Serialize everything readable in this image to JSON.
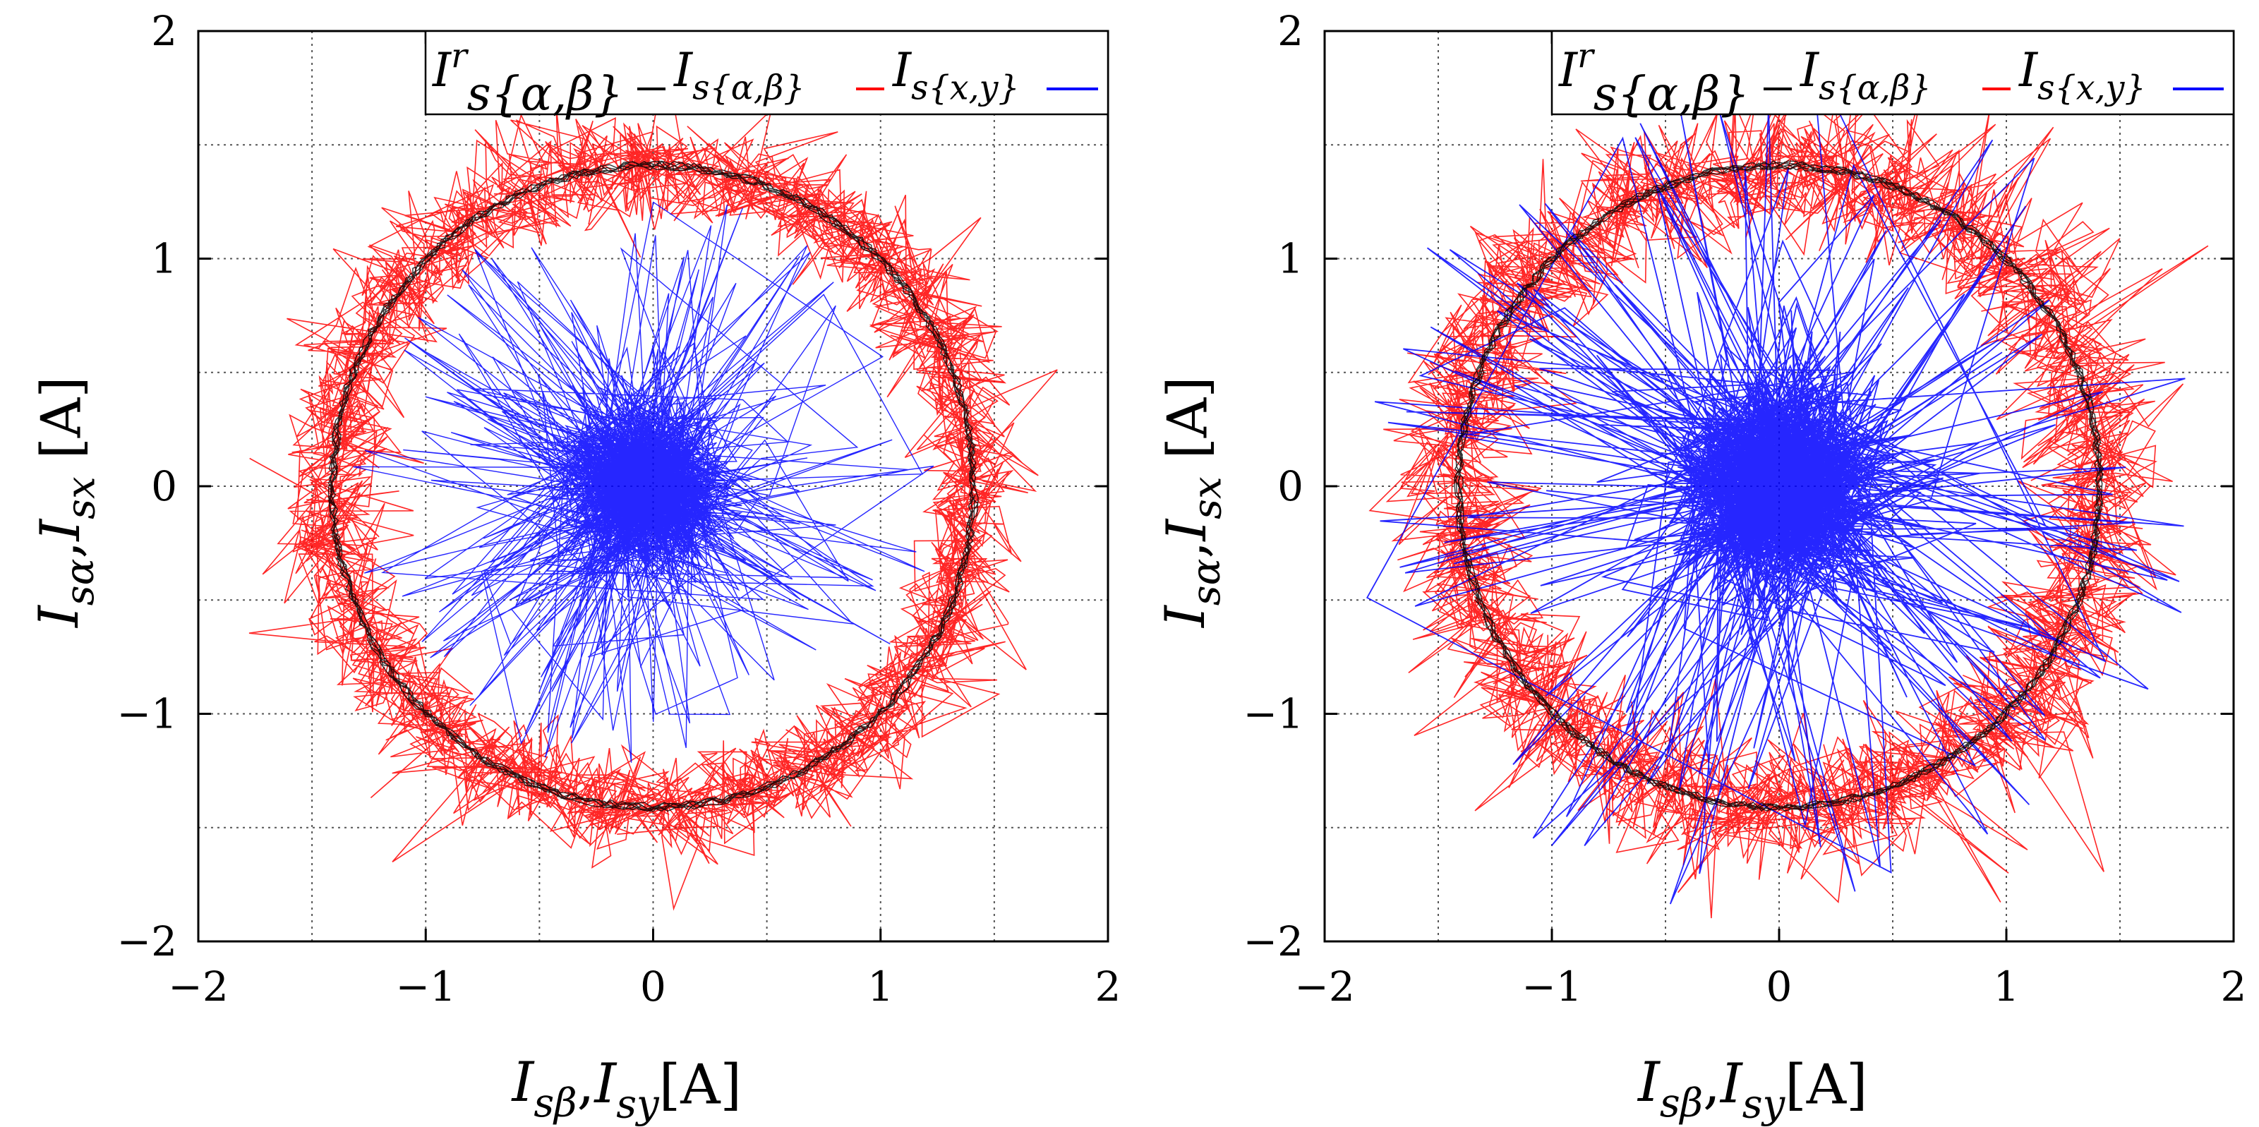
{
  "figure": {
    "panel_count": 2
  },
  "chart_data": [
    {
      "type": "line",
      "name": "left-panel",
      "xlim": [
        -2,
        2
      ],
      "ylim": [
        -2,
        2
      ],
      "xticks": [
        -2,
        -1,
        0,
        1,
        2
      ],
      "yticks": [
        -2,
        -1,
        0,
        1,
        2
      ],
      "xtick_labels": [
        "−2",
        "−1",
        "0",
        "1",
        "2"
      ],
      "ytick_labels": [
        "−2",
        "−1",
        "0",
        "1",
        "2"
      ],
      "grid": true,
      "xlabel": "Isβ,Isy[A]",
      "ylabel": "Isα,Isx [A]",
      "legend_position": "top-right",
      "legend": [
        {
          "label": "Irs{α,β}",
          "color": "#000000"
        },
        {
          "label": "Is{α,β}",
          "color": "#ff0000"
        },
        {
          "label": "Is{x,y}",
          "color": "#0000ff"
        }
      ],
      "series": [
        {
          "name": "Irs{α,β}",
          "kind": "reference-circle",
          "radius": 1.41,
          "center": [
            0,
            0
          ],
          "color": "#000000"
        },
        {
          "name": "Is{α,β}",
          "kind": "noisy-circle",
          "radius": 1.41,
          "noise_amplitude": 0.2,
          "color": "#ff0000"
        },
        {
          "name": "Is{x,y}",
          "kind": "scatter-cluster",
          "center": [
            -0.05,
            0.0
          ],
          "spread": 0.35,
          "max_extent": 1.3,
          "color": "#0000ff"
        }
      ]
    },
    {
      "type": "line",
      "name": "right-panel",
      "xlim": [
        -2,
        2
      ],
      "ylim": [
        -2,
        2
      ],
      "xticks": [
        -2,
        -1,
        0,
        1,
        2
      ],
      "yticks": [
        -2,
        -1,
        0,
        1,
        2
      ],
      "xtick_labels": [
        "−2",
        "−1",
        "0",
        "1",
        "2"
      ],
      "ytick_labels": [
        "−2",
        "−1",
        "0",
        "1",
        "2"
      ],
      "grid": true,
      "xlabel": "Isβ,Isy[A]",
      "ylabel": "Isα,Isx [A]",
      "legend_position": "top-right",
      "legend": [
        {
          "label": "Irs{α,β}",
          "color": "#000000"
        },
        {
          "label": "Is{α,β}",
          "color": "#ff0000"
        },
        {
          "label": "Is{x,y}",
          "color": "#0000ff"
        }
      ],
      "series": [
        {
          "name": "Irs{α,β}",
          "kind": "reference-circle",
          "radius": 1.41,
          "center": [
            0,
            0
          ],
          "color": "#000000"
        },
        {
          "name": "Is{α,β}",
          "kind": "noisy-circle",
          "radius": 1.41,
          "noise_amplitude": 0.25,
          "color": "#ff0000"
        },
        {
          "name": "Is{x,y}",
          "kind": "scatter-cluster",
          "center": [
            0.0,
            0.0
          ],
          "spread": 0.45,
          "max_extent": 1.9,
          "color": "#0000ff"
        }
      ]
    }
  ]
}
